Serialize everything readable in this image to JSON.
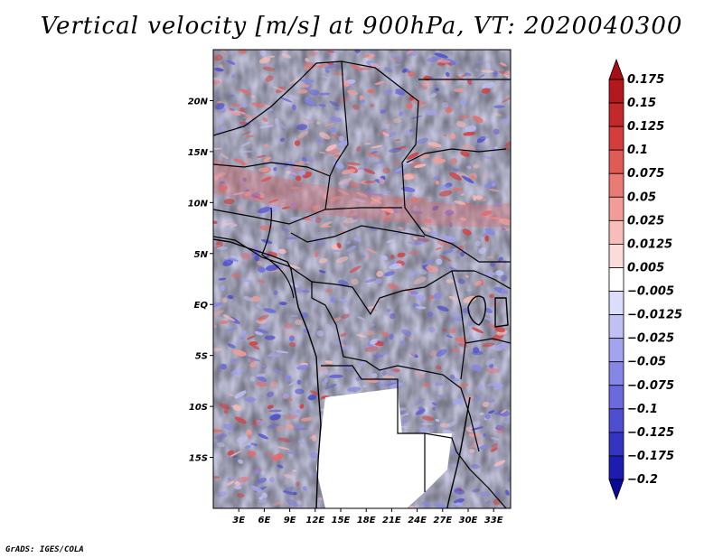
{
  "title": "Vertical velocity [m/s] at 900hPa, VT: 2020040300",
  "footer": "GrADS: IGES/COLA",
  "map": {
    "lat_ticks": [
      "20N",
      "15N",
      "10N",
      "5N",
      "EQ",
      "5S",
      "10S",
      "15S"
    ],
    "lat_values": [
      20,
      15,
      10,
      5,
      0,
      -5,
      -10,
      -15
    ],
    "lon_ticks": [
      "3E",
      "6E",
      "9E",
      "12E",
      "15E",
      "18E",
      "21E",
      "24E",
      "27E",
      "30E",
      "33E"
    ],
    "lon_values": [
      3,
      6,
      9,
      12,
      15,
      18,
      21,
      24,
      27,
      30,
      33
    ],
    "lon_range": [
      0,
      35
    ],
    "lat_range": [
      -20,
      25
    ]
  },
  "colorbar": {
    "labels": [
      "0.175",
      "0.15",
      "0.125",
      "0.1",
      "0.075",
      "0.05",
      "0.025",
      "0.0125",
      "0.005",
      "-0.005",
      "-0.0125",
      "-0.025",
      "-0.05",
      "-0.075",
      "-0.1",
      "-0.125",
      "-0.175",
      "-0.2"
    ],
    "colors": [
      "#a50f15",
      "#b2181c",
      "#c4282b",
      "#d43d3b",
      "#e05a56",
      "#e97a74",
      "#f19c96",
      "#f7bdb8",
      "#fbdcd8",
      "#ffffff",
      "#dcdcfb",
      "#c0c0f5",
      "#a3a3ee",
      "#8686e6",
      "#6a6adc",
      "#4e4ed0",
      "#3434c2",
      "#1c1cb0",
      "#0a0a9a"
    ]
  },
  "colors": {
    "positive": "#d43d3b",
    "negative": "#6a6adc",
    "border": "#000000"
  }
}
